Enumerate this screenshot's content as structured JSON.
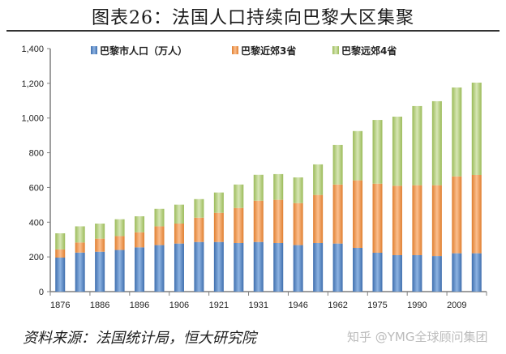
{
  "title": "图表26：法国人口持续向巴黎大区集聚",
  "footer": "资料来源：法国统计局，恒大研究院",
  "watermark": "知乎 @YMG全球顾问集团",
  "chart_data": {
    "type": "stacked-bar",
    "title": "",
    "xlabel": "",
    "ylabel": "",
    "ylim": [
      0,
      1400
    ],
    "yticks": [
      "0",
      "200",
      "400",
      "600",
      "800",
      "1,000",
      "1,200",
      "1,400"
    ],
    "grid": false,
    "legend": "top",
    "categories": [
      "1876",
      "",
      "1886",
      "",
      "1896",
      "",
      "1906",
      "",
      "1921",
      "",
      "1931",
      "",
      "1946",
      "",
      "1962",
      "",
      "1975",
      "",
      "1990",
      "",
      "2009",
      ""
    ],
    "series": [
      {
        "name": "巴黎市人口（万人）",
        "color": "#4f81bd",
        "values": [
          196,
          225,
          230,
          240,
          255,
          268,
          277,
          286,
          286,
          280,
          286,
          280,
          268,
          280,
          277,
          252,
          224,
          210,
          210,
          205,
          221,
          221
        ]
      },
      {
        "name": "巴黎近郊3省",
        "color": "#f79646",
        "values": [
          47,
          58,
          75,
          80,
          87,
          108,
          115,
          140,
          168,
          202,
          238,
          249,
          242,
          277,
          340,
          389,
          398,
          400,
          403,
          408,
          443,
          451
        ]
      },
      {
        "name": "巴黎远郊4省",
        "color": "#9bbb59",
        "values": [
          93,
          93,
          87,
          97,
          92,
          101,
          109,
          107,
          117,
          135,
          149,
          148,
          148,
          176,
          228,
          284,
          367,
          398,
          456,
          484,
          512,
          532
        ]
      }
    ]
  }
}
